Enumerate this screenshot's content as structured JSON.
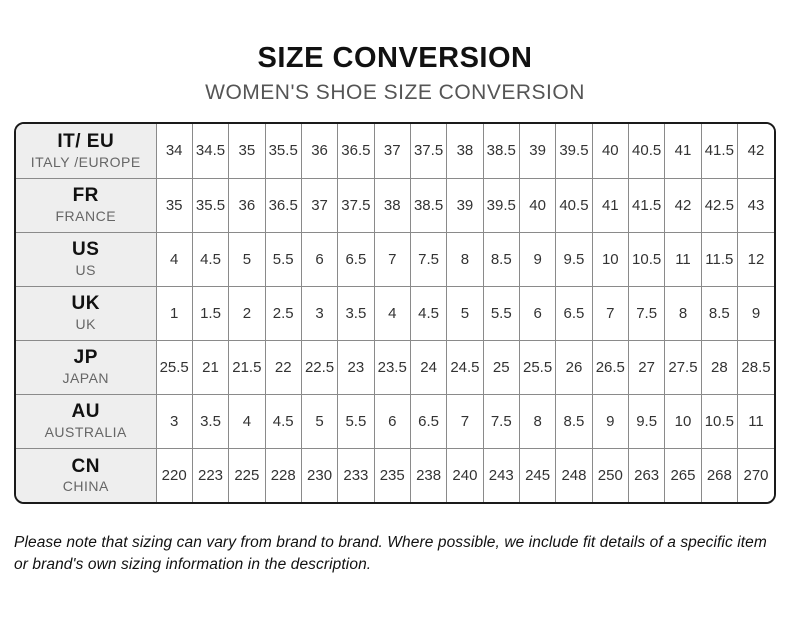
{
  "title": "SIZE CONVERSION",
  "subtitle": "WOMEN'S SHOE SIZE CONVERSION",
  "footnote": "Please note that sizing can vary from brand to brand. Where possible, we include fit details of a specific item or brand's own sizing information in the description.",
  "colors": {
    "title_text": "#111111",
    "subtitle_text": "#555555",
    "header_column_bg": "#eeeeee",
    "inner_border": "#8a8a8a",
    "outer_border": "#1a1a1a",
    "cell_text": "#333333",
    "region_text": "#666666"
  },
  "chart_data": {
    "type": "table",
    "title": "SIZE CONVERSION",
    "subtitle": "WOMEN'S SHOE SIZE CONVERSION",
    "rows": [
      {
        "code": "IT/ EU",
        "region": "ITALY /EUROPE",
        "values": [
          "34",
          "34.5",
          "35",
          "35.5",
          "36",
          "36.5",
          "37",
          "37.5",
          "38",
          "38.5",
          "39",
          "39.5",
          "40",
          "40.5",
          "41",
          "41.5",
          "42"
        ]
      },
      {
        "code": "FR",
        "region": "FRANCE",
        "values": [
          "35",
          "35.5",
          "36",
          "36.5",
          "37",
          "37.5",
          "38",
          "38.5",
          "39",
          "39.5",
          "40",
          "40.5",
          "41",
          "41.5",
          "42",
          "42.5",
          "43"
        ]
      },
      {
        "code": "US",
        "region": "US",
        "values": [
          "4",
          "4.5",
          "5",
          "5.5",
          "6",
          "6.5",
          "7",
          "7.5",
          "8",
          "8.5",
          "9",
          "9.5",
          "10",
          "10.5",
          "11",
          "11.5",
          "12"
        ]
      },
      {
        "code": "UK",
        "region": "UK",
        "values": [
          "1",
          "1.5",
          "2",
          "2.5",
          "3",
          "3.5",
          "4",
          "4.5",
          "5",
          "5.5",
          "6",
          "6.5",
          "7",
          "7.5",
          "8",
          "8.5",
          "9"
        ]
      },
      {
        "code": "JP",
        "region": "JAPAN",
        "values": [
          "25.5",
          "21",
          "21.5",
          "22",
          "22.5",
          "23",
          "23.5",
          "24",
          "24.5",
          "25",
          "25.5",
          "26",
          "26.5",
          "27",
          "27.5",
          "28",
          "28.5"
        ]
      },
      {
        "code": "AU",
        "region": "AUSTRALIA",
        "values": [
          "3",
          "3.5",
          "4",
          "4.5",
          "5",
          "5.5",
          "6",
          "6.5",
          "7",
          "7.5",
          "8",
          "8.5",
          "9",
          "9.5",
          "10",
          "10.5",
          "11"
        ]
      },
      {
        "code": "CN",
        "region": "CHINA",
        "values": [
          "220",
          "223",
          "225",
          "228",
          "230",
          "233",
          "235",
          "238",
          "240",
          "243",
          "245",
          "248",
          "250",
          "263",
          "265",
          "268",
          "270"
        ]
      }
    ]
  }
}
